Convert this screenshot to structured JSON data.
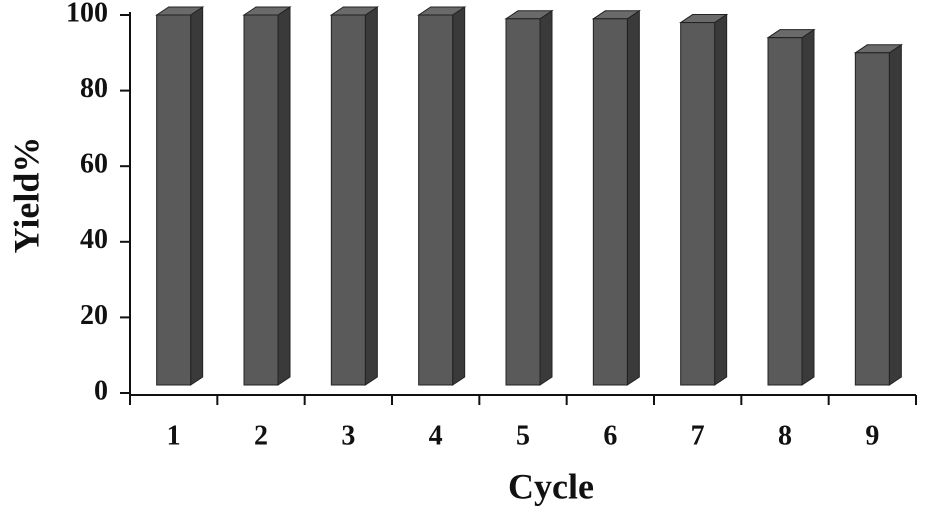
{
  "chart_data": {
    "type": "bar",
    "x_label": "Cycle",
    "y_label": "Yield%",
    "categories": [
      "1",
      "2",
      "3",
      "4",
      "5",
      "6",
      "7",
      "8",
      "9"
    ],
    "values": [
      100,
      100,
      100,
      100,
      99,
      99,
      98,
      94,
      90
    ],
    "color": "#5a5a5a",
    "ylim": [
      0,
      100
    ],
    "yticks": [
      0,
      20,
      40,
      60,
      80,
      100
    ],
    "grid": false
  }
}
